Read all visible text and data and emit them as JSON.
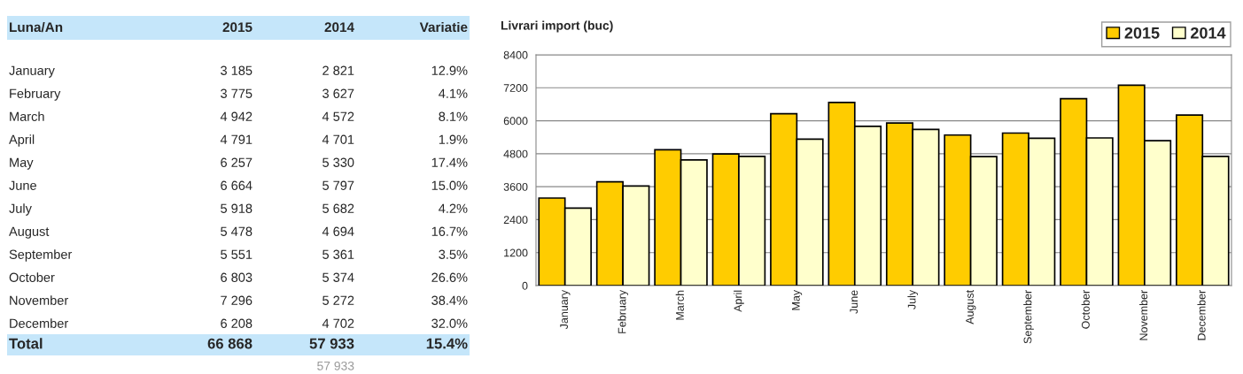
{
  "chart_data": {
    "type": "bar",
    "title": "Livrari import (buc)",
    "categories": [
      "January",
      "February",
      "March",
      "April",
      "May",
      "June",
      "July",
      "August",
      "September",
      "October",
      "November",
      "December"
    ],
    "series": [
      {
        "name": "2015",
        "color": "#ffcc00",
        "values": [
          3185,
          3775,
          4942,
          4791,
          6257,
          6664,
          5918,
          5478,
          5551,
          6803,
          7296,
          6208
        ]
      },
      {
        "name": "2014",
        "color": "#ffffcc",
        "values": [
          2821,
          3627,
          4572,
          4701,
          5330,
          5797,
          5682,
          4694,
          5361,
          5374,
          5272,
          4702
        ]
      }
    ],
    "ylim": [
      0,
      8400
    ],
    "yticks": [
      0,
      1200,
      2400,
      3600,
      4800,
      6000,
      7200,
      8400
    ],
    "grid": "y",
    "legend": "top right",
    "annotations": [
      "Luna/An",
      "Variatie",
      "3 185",
      "2 821",
      "12.9%",
      "3 775",
      "3 627",
      "4.1%",
      "4 942",
      "4 572",
      "8.1%",
      "4 791",
      "4 701",
      "1.9%",
      "6 257",
      "5 330",
      "17.4%",
      "6 664",
      "5 797",
      "15.0%",
      "5 918",
      "5 682",
      "4.2%",
      "5 478",
      "4 694",
      "16.7%",
      "5 551",
      "5 361",
      "3.5%",
      "6 803",
      "5 374",
      "26.6%",
      "7 296",
      "5 272",
      "38.4%",
      "6 208",
      "4 702",
      "32.0%",
      "Total",
      "66 868",
      "57 933",
      "15.4%",
      "57 933"
    ]
  }
}
